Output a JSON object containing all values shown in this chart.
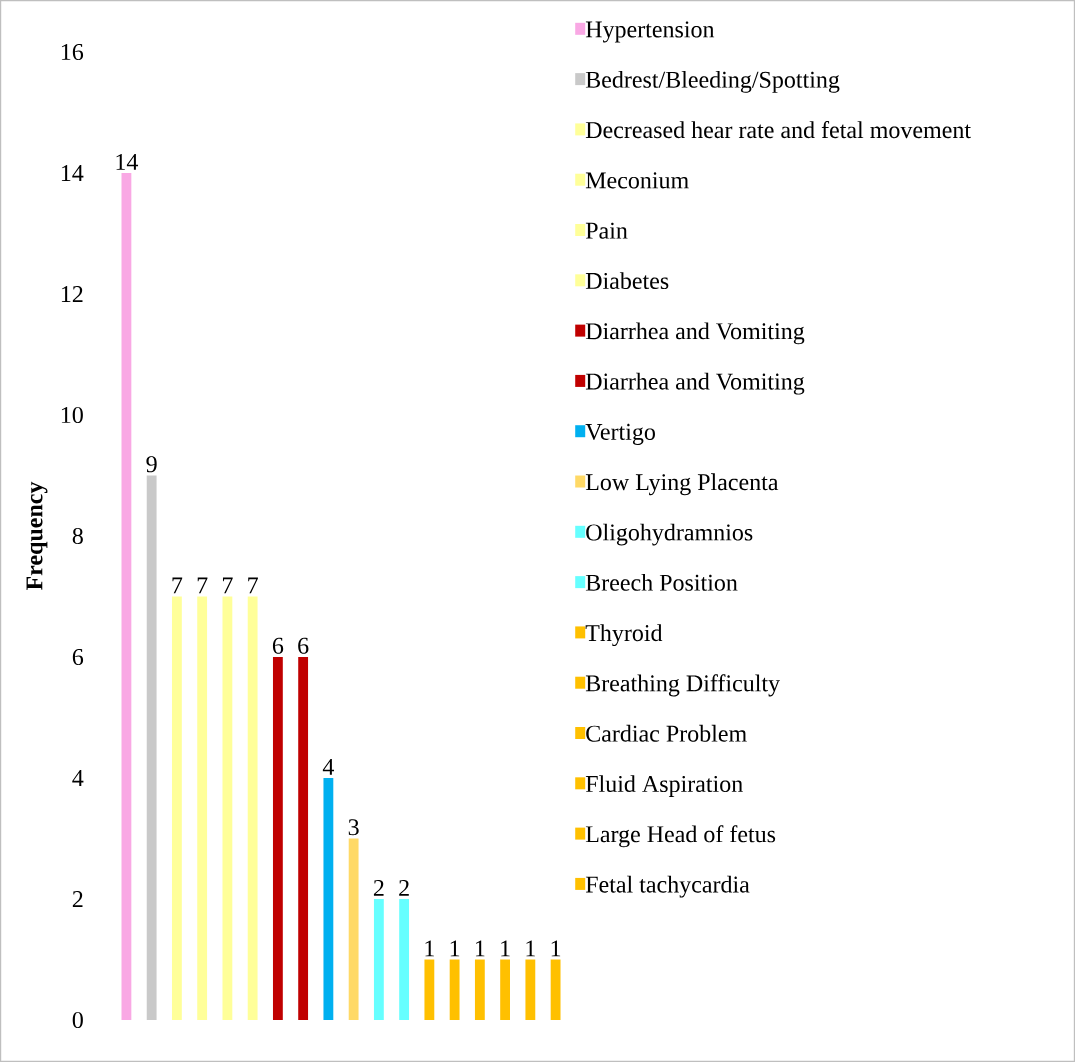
{
  "chart_data": {
    "type": "bar",
    "ylabel": "Frequency",
    "stacked": true,
    "categories": [
      null,
      null,
      null,
      null,
      null,
      null,
      null,
      null,
      null,
      null,
      null,
      null,
      null,
      null,
      null,
      null,
      null,
      null
    ],
    "series": [
      {
        "name": "Hypertension",
        "color": "#f9a8e4",
        "values": [
          14,
          null,
          null,
          null,
          null,
          null,
          null,
          null,
          null,
          null,
          null,
          null,
          null,
          null,
          null,
          null,
          null,
          null
        ]
      },
      {
        "name": "Bedrest/Bleeding/Spotting",
        "color": "#c9c9c9",
        "values": [
          null,
          9,
          null,
          null,
          null,
          null,
          null,
          null,
          null,
          null,
          null,
          null,
          null,
          null,
          null,
          null,
          null,
          null
        ]
      },
      {
        "name": "Decreased hear rate and fetal movement",
        "color": "#ffff99",
        "values": [
          null,
          null,
          7,
          null,
          null,
          null,
          null,
          null,
          null,
          null,
          null,
          null,
          null,
          null,
          null,
          null,
          null,
          null
        ]
      },
      {
        "name": "Meconium",
        "color": "#ffff99",
        "values": [
          null,
          null,
          null,
          7,
          null,
          null,
          null,
          null,
          null,
          null,
          null,
          null,
          null,
          null,
          null,
          null,
          null,
          null
        ]
      },
      {
        "name": "Pain",
        "color": "#ffff99",
        "values": [
          null,
          null,
          null,
          null,
          7,
          null,
          null,
          null,
          null,
          null,
          null,
          null,
          null,
          null,
          null,
          null,
          null,
          null
        ]
      },
      {
        "name": "Diabetes",
        "color": "#ffff99",
        "values": [
          null,
          null,
          null,
          null,
          null,
          7,
          null,
          null,
          null,
          null,
          null,
          null,
          null,
          null,
          null,
          null,
          null,
          null
        ]
      },
      {
        "name": "Diarrhea and Vomiting",
        "color": "#c00000",
        "values": [
          null,
          null,
          null,
          null,
          null,
          null,
          6,
          null,
          null,
          null,
          null,
          null,
          null,
          null,
          null,
          null,
          null,
          null
        ]
      },
      {
        "name": "Diarrhea and Vomiting",
        "color": "#c00000",
        "values": [
          null,
          null,
          null,
          null,
          null,
          null,
          null,
          6,
          null,
          null,
          null,
          null,
          null,
          null,
          null,
          null,
          null,
          null
        ]
      },
      {
        "name": "Vertigo",
        "color": "#00b0f0",
        "values": [
          null,
          null,
          null,
          null,
          null,
          null,
          null,
          null,
          4,
          null,
          null,
          null,
          null,
          null,
          null,
          null,
          null,
          null
        ]
      },
      {
        "name": "Low Lying Placenta",
        "color": "#ffd966",
        "values": [
          null,
          null,
          null,
          null,
          null,
          null,
          null,
          null,
          null,
          3,
          null,
          null,
          null,
          null,
          null,
          null,
          null,
          null
        ]
      },
      {
        "name": "Oligohydramnios",
        "color": "#66ffff",
        "values": [
          null,
          null,
          null,
          null,
          null,
          null,
          null,
          null,
          null,
          null,
          2,
          null,
          null,
          null,
          null,
          null,
          null,
          null
        ]
      },
      {
        "name": "Breech Position",
        "color": "#66ffff",
        "values": [
          null,
          null,
          null,
          null,
          null,
          null,
          null,
          null,
          null,
          null,
          null,
          2,
          null,
          null,
          null,
          null,
          null,
          null
        ]
      },
      {
        "name": "Thyroid",
        "color": "#ffc000",
        "values": [
          null,
          null,
          null,
          null,
          null,
          null,
          null,
          null,
          null,
          null,
          null,
          null,
          1,
          null,
          null,
          null,
          null,
          null
        ]
      },
      {
        "name": "Breathing Difficulty",
        "color": "#ffc000",
        "values": [
          null,
          null,
          null,
          null,
          null,
          null,
          null,
          null,
          null,
          null,
          null,
          null,
          null,
          1,
          null,
          null,
          null,
          null
        ]
      },
      {
        "name": "Cardiac Problem",
        "color": "#ffc000",
        "values": [
          null,
          null,
          null,
          null,
          null,
          null,
          null,
          null,
          null,
          null,
          null,
          null,
          null,
          null,
          1,
          null,
          null,
          null
        ]
      },
      {
        "name": "Fluid Aspiration",
        "color": "#ffc000",
        "values": [
          null,
          null,
          null,
          null,
          null,
          null,
          null,
          null,
          null,
          null,
          null,
          null,
          null,
          null,
          null,
          1,
          null,
          null
        ]
      },
      {
        "name": "Large Head of fetus",
        "color": "#ffc000",
        "values": [
          null,
          null,
          null,
          null,
          null,
          null,
          null,
          null,
          null,
          null,
          null,
          null,
          null,
          null,
          null,
          null,
          1,
          null
        ]
      },
      {
        "name": "Fetal tachycardia",
        "color": "#ffc000",
        "values": [
          null,
          null,
          null,
          null,
          null,
          null,
          null,
          null,
          null,
          null,
          null,
          null,
          null,
          null,
          null,
          null,
          null,
          1
        ]
      }
    ],
    "ylim": [
      0,
      16
    ],
    "yticks": [
      0,
      2,
      4,
      6,
      8,
      10,
      12,
      14,
      16
    ],
    "data_labels": true,
    "legend": "right",
    "grid": false
  }
}
